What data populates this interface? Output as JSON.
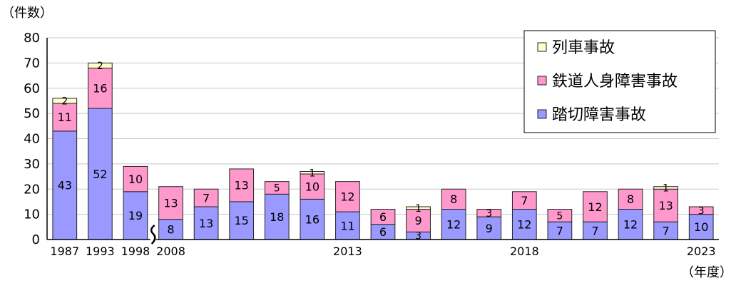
{
  "chart_data": {
    "type": "bar",
    "stacked": true,
    "ylabel": "（件数）",
    "xlabel": "（年度）",
    "ylim": [
      0,
      80
    ],
    "yticks": [
      0,
      10,
      20,
      30,
      40,
      50,
      60,
      70,
      80
    ],
    "grid": true,
    "axis_break_after": "1998",
    "legend_position": "top-right",
    "categories": [
      "1987",
      "1993",
      "1998",
      "2008",
      "2009",
      "2010",
      "2011",
      "2012",
      "2013",
      "2014",
      "2015",
      "2016",
      "2017",
      "2018",
      "2019",
      "2020",
      "2021",
      "2022",
      "2023"
    ],
    "x_tick_labels": [
      {
        "category": "1987",
        "text": "1987"
      },
      {
        "category": "1993",
        "text": "1993"
      },
      {
        "category": "1998",
        "text": "1998"
      },
      {
        "category": "2008",
        "text": "2008"
      },
      {
        "category": "2013",
        "text": "2013"
      },
      {
        "category": "2018",
        "text": "2018"
      },
      {
        "category": "2023",
        "text": "2023"
      }
    ],
    "series": [
      {
        "name": "踏切障害事故",
        "color": "#9999ff",
        "values": [
          43,
          52,
          19,
          8,
          13,
          15,
          18,
          16,
          11,
          6,
          3,
          12,
          9,
          12,
          7,
          7,
          12,
          7,
          10
        ]
      },
      {
        "name": "鉄道人身障害事故",
        "color": "#ff99cc",
        "values": [
          11,
          16,
          10,
          13,
          7,
          13,
          5,
          10,
          12,
          6,
          9,
          8,
          3,
          7,
          5,
          12,
          8,
          13,
          3
        ]
      },
      {
        "name": "列車事故",
        "color": "#ffffcc",
        "values": [
          2,
          2,
          0,
          0,
          0,
          0,
          0,
          1,
          0,
          0,
          1,
          0,
          0,
          0,
          0,
          0,
          0,
          1,
          0
        ]
      }
    ],
    "legend_order": [
      "列車事故",
      "鉄道人身障害事故",
      "踏切障害事故"
    ]
  }
}
